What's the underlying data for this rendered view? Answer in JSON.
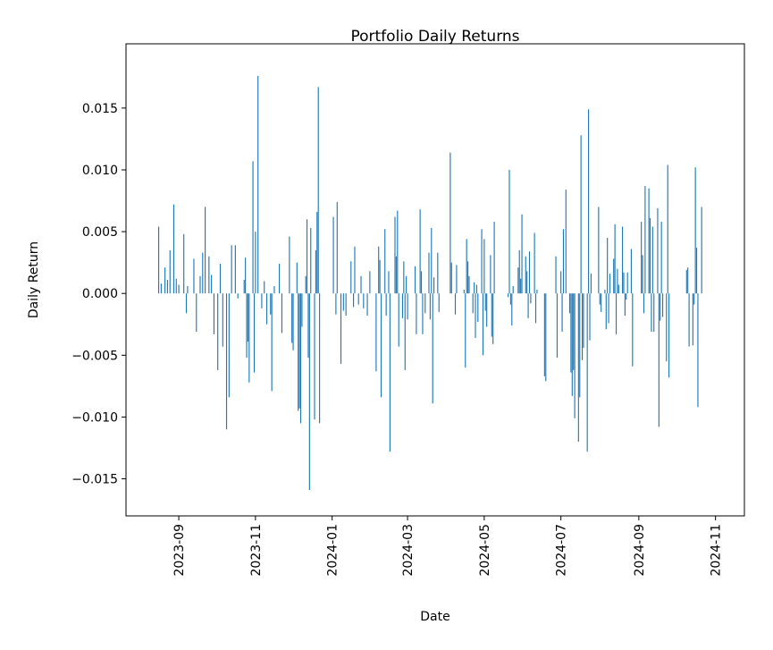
{
  "chart_data": {
    "type": "bar",
    "title": "Portfolio Daily Returns",
    "x_label": "Date",
    "y_label": "Daily Return",
    "color": "#1f77b4",
    "x": [
      "2023-08-16",
      "2023-08-18",
      "2023-08-21",
      "2023-08-23",
      "2023-08-25",
      "2023-08-28",
      "2023-08-30",
      "2023-09-01",
      "2023-09-05",
      "2023-09-07",
      "2023-09-08",
      "2023-09-13",
      "2023-09-15",
      "2023-09-18",
      "2023-09-20",
      "2023-09-22",
      "2023-09-25",
      "2023-09-27",
      "2023-09-29",
      "2023-10-02",
      "2023-10-04",
      "2023-10-06",
      "2023-10-09",
      "2023-10-11",
      "2023-10-13",
      "2023-10-16",
      "2023-10-18",
      "2023-10-23",
      "2023-10-24",
      "2023-10-25",
      "2023-10-26",
      "2023-10-27",
      "2023-10-30",
      "2023-10-31",
      "2023-11-01",
      "2023-11-03",
      "2023-11-06",
      "2023-11-08",
      "2023-11-10",
      "2023-11-13",
      "2023-11-14",
      "2023-11-16",
      "2023-11-20",
      "2023-11-22",
      "2023-11-28",
      "2023-11-30",
      "2023-12-01",
      "2023-12-04",
      "2023-12-05",
      "2023-12-06",
      "2023-12-07",
      "2023-12-08",
      "2023-12-11",
      "2023-12-12",
      "2023-12-13",
      "2023-12-14",
      "2023-12-15",
      "2023-12-18",
      "2023-12-19",
      "2023-12-20",
      "2023-12-21",
      "2023-12-22",
      "2024-01-02",
      "2024-01-04",
      "2024-01-05",
      "2024-01-08",
      "2024-01-10",
      "2024-01-12",
      "2024-01-16",
      "2024-01-18",
      "2024-01-19",
      "2024-01-22",
      "2024-01-24",
      "2024-01-26",
      "2024-01-29",
      "2024-01-31",
      "2024-02-05",
      "2024-02-07",
      "2024-02-08",
      "2024-02-09",
      "2024-02-12",
      "2024-02-13",
      "2024-02-15",
      "2024-02-16",
      "2024-02-20",
      "2024-02-21",
      "2024-02-22",
      "2024-02-23",
      "2024-02-26",
      "2024-02-27",
      "2024-02-28",
      "2024-02-29",
      "2024-03-01",
      "2024-03-07",
      "2024-03-08",
      "2024-03-11",
      "2024-03-12",
      "2024-03-13",
      "2024-03-15",
      "2024-03-18",
      "2024-03-19",
      "2024-03-20",
      "2024-03-21",
      "2024-03-22",
      "2024-03-25",
      "2024-03-26",
      "2024-04-04",
      "2024-04-05",
      "2024-04-08",
      "2024-04-09",
      "2024-04-15",
      "2024-04-16",
      "2024-04-17",
      "2024-04-18",
      "2024-04-19",
      "2024-04-22",
      "2024-04-23",
      "2024-04-24",
      "2024-04-25",
      "2024-04-26",
      "2024-04-29",
      "2024-04-30",
      "2024-05-01",
      "2024-05-02",
      "2024-05-03",
      "2024-05-06",
      "2024-05-07",
      "2024-05-08",
      "2024-05-09",
      "2024-05-20",
      "2024-05-21",
      "2024-05-22",
      "2024-05-23",
      "2024-05-24",
      "2024-05-28",
      "2024-05-29",
      "2024-05-30",
      "2024-05-31",
      "2024-06-03",
      "2024-06-04",
      "2024-06-05",
      "2024-06-06",
      "2024-06-07",
      "2024-06-10",
      "2024-06-11",
      "2024-06-12",
      "2024-06-18",
      "2024-06-19",
      "2024-06-27",
      "2024-06-28",
      "2024-07-01",
      "2024-07-02",
      "2024-07-03",
      "2024-07-05",
      "2024-07-08",
      "2024-07-09",
      "2024-07-10",
      "2024-07-11",
      "2024-07-12",
      "2024-07-15",
      "2024-07-16",
      "2024-07-17",
      "2024-07-18",
      "2024-07-19",
      "2024-07-22",
      "2024-07-23",
      "2024-07-24",
      "2024-07-25",
      "2024-07-31",
      "2024-08-01",
      "2024-08-02",
      "2024-08-05",
      "2024-08-06",
      "2024-08-07",
      "2024-08-08",
      "2024-08-09",
      "2024-08-12",
      "2024-08-13",
      "2024-08-14",
      "2024-08-15",
      "2024-08-16",
      "2024-08-19",
      "2024-08-20",
      "2024-08-21",
      "2024-08-22",
      "2024-08-23",
      "2024-08-26",
      "2024-08-27",
      "2024-09-03",
      "2024-09-04",
      "2024-09-05",
      "2024-09-06",
      "2024-09-09",
      "2024-09-10",
      "2024-09-11",
      "2024-09-12",
      "2024-09-13",
      "2024-09-16",
      "2024-09-17",
      "2024-09-18",
      "2024-09-19",
      "2024-09-20",
      "2024-09-23",
      "2024-09-24",
      "2024-09-25",
      "2024-10-09",
      "2024-10-10",
      "2024-10-11",
      "2024-10-14",
      "2024-10-15",
      "2024-10-16",
      "2024-10-17",
      "2024-10-18",
      "2024-10-21"
    ],
    "values": [
      0.0054,
      0.0008,
      0.0021,
      0.0011,
      0.0035,
      0.0072,
      0.0012,
      0.0007,
      0.0048,
      -0.0016,
      0.0006,
      0.0028,
      -0.0031,
      0.0014,
      0.0033,
      0.007,
      0.003,
      0.0015,
      -0.0033,
      -0.0062,
      0.0024,
      -0.0043,
      -0.011,
      -0.0084,
      0.0039,
      0.0039,
      -0.0004,
      0.0011,
      0.0029,
      -0.0052,
      -0.0039,
      -0.0072,
      0.0107,
      -0.0064,
      0.005,
      0.0176,
      -0.0012,
      0.001,
      -0.0025,
      -0.0017,
      -0.0079,
      0.0006,
      0.0024,
      -0.0032,
      0.0046,
      -0.004,
      -0.0046,
      0.0025,
      -0.0095,
      -0.0093,
      -0.0105,
      -0.0027,
      0.0014,
      0.006,
      -0.0052,
      -0.0159,
      0.0053,
      -0.0102,
      0.0035,
      0.0066,
      0.0167,
      -0.0105,
      0.0062,
      -0.0017,
      0.0074,
      -0.0057,
      -0.0014,
      -0.0018,
      0.0026,
      -0.0011,
      0.0038,
      -0.0009,
      0.0014,
      -0.0012,
      -0.0018,
      0.0018,
      -0.0063,
      0.0038,
      0.0027,
      -0.0084,
      0.0052,
      -0.0018,
      0.0018,
      -0.0128,
      0.0062,
      0.003,
      0.0067,
      -0.0043,
      -0.002,
      0.0026,
      -0.0062,
      0.0014,
      -0.0021,
      0.0022,
      -0.0033,
      0.0068,
      0.0018,
      -0.0033,
      -0.0016,
      0.0033,
      -0.0021,
      0.0053,
      -0.0089,
      0.0013,
      0.0033,
      -0.0015,
      0.0114,
      0.0025,
      -0.0017,
      0.0023,
      0.0003,
      -0.006,
      0.0044,
      0.0026,
      0.0014,
      -0.0016,
      0.0009,
      -0.0036,
      0.0007,
      -0.0023,
      0.0052,
      -0.005,
      0.0044,
      -0.0014,
      -0.0027,
      0.0031,
      -0.0035,
      -0.0041,
      0.0058,
      -0.0003,
      0.01,
      -0.0009,
      -0.0026,
      0.0006,
      0.0021,
      0.0035,
      0.0012,
      0.0064,
      0.003,
      0.0018,
      -0.002,
      0.0034,
      -0.0008,
      0.0049,
      -0.0024,
      0.0003,
      -0.0067,
      -0.0071,
      0.003,
      -0.0052,
      0.0018,
      -0.0031,
      0.0052,
      0.0084,
      -0.0016,
      -0.0064,
      -0.0083,
      -0.0062,
      -0.0101,
      -0.012,
      -0.0084,
      0.0128,
      -0.0054,
      -0.0044,
      -0.0128,
      0.0149,
      -0.0038,
      0.0016,
      0.007,
      -0.0009,
      -0.0015,
      0.0003,
      -0.0029,
      0.0045,
      -0.0024,
      0.0016,
      0.0028,
      0.0056,
      -0.0033,
      0.002,
      0.0007,
      0.0054,
      0.0017,
      -0.0018,
      -0.0005,
      0.0017,
      0.0036,
      -0.0059,
      0.0058,
      0.0031,
      -0.0016,
      0.0087,
      0.0085,
      0.0061,
      -0.0031,
      0.0054,
      -0.0031,
      0.0069,
      -0.0108,
      -0.0022,
      0.0058,
      -0.0019,
      -0.0055,
      0.0104,
      -0.0068,
      0.0019,
      0.0021,
      -0.0043,
      -0.0042,
      -0.0009,
      0.0102,
      0.0037,
      -0.0092,
      0.007
    ],
    "xlim": [
      "2023-07-21",
      "2024-11-24"
    ],
    "xticks": [
      {
        "value": "2023-09-01",
        "label": "2023-09"
      },
      {
        "value": "2023-11-01",
        "label": "2023-11"
      },
      {
        "value": "2024-01-01",
        "label": "2024-01"
      },
      {
        "value": "2024-03-01",
        "label": "2024-03"
      },
      {
        "value": "2024-05-01",
        "label": "2024-05"
      },
      {
        "value": "2024-07-01",
        "label": "2024-07"
      },
      {
        "value": "2024-09-01",
        "label": "2024-09"
      },
      {
        "value": "2024-11-01",
        "label": "2024-11"
      }
    ],
    "ylim": [
      -0.018,
      0.0202
    ],
    "yticks": [
      {
        "value": -0.015,
        "label": "−0.015"
      },
      {
        "value": -0.01,
        "label": "−0.010"
      },
      {
        "value": -0.005,
        "label": "−0.005"
      },
      {
        "value": 0,
        "label": "0.000"
      },
      {
        "value": 0.005,
        "label": "0.005"
      },
      {
        "value": 0.01,
        "label": "0.010"
      },
      {
        "value": 0.015,
        "label": "0.015"
      }
    ],
    "grid": false
  }
}
